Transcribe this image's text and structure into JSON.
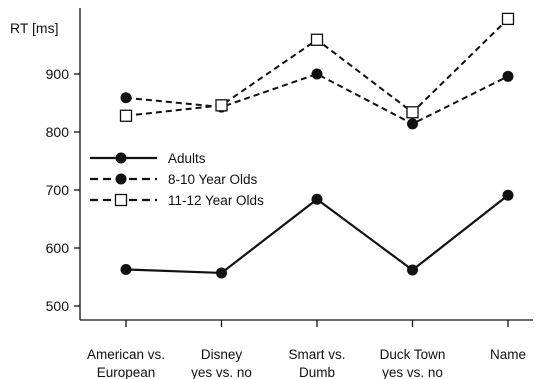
{
  "chart_data": {
    "type": "line",
    "ylabel": "RT [ms]",
    "xlabel": "",
    "ylim": [
      485,
      1000
    ],
    "yticks": [
      500,
      600,
      700,
      800,
      900
    ],
    "grid": false,
    "legend_position": "left-middle",
    "categories": [
      [
        "American vs.",
        "European"
      ],
      [
        "Disney",
        "yes vs. no"
      ],
      [
        "Smart vs.",
        "Dumb"
      ],
      [
        "Duck Town",
        "yes vs. no"
      ],
      [
        "Name"
      ]
    ],
    "series": [
      {
        "name": "Adults",
        "style": "solid",
        "marker": "filled-circle",
        "color": "#111111",
        "values": [
          563,
          557,
          684,
          562,
          691
        ]
      },
      {
        "name": "8-10 Year Olds",
        "style": "dashed",
        "marker": "filled-circle",
        "color": "#111111",
        "values": [
          859,
          843,
          900,
          814,
          896
        ]
      },
      {
        "name": "11-12 Year Olds",
        "style": "dashed",
        "marker": "open-square",
        "color": "#111111",
        "values": [
          828,
          846,
          959,
          834,
          995
        ]
      }
    ]
  }
}
